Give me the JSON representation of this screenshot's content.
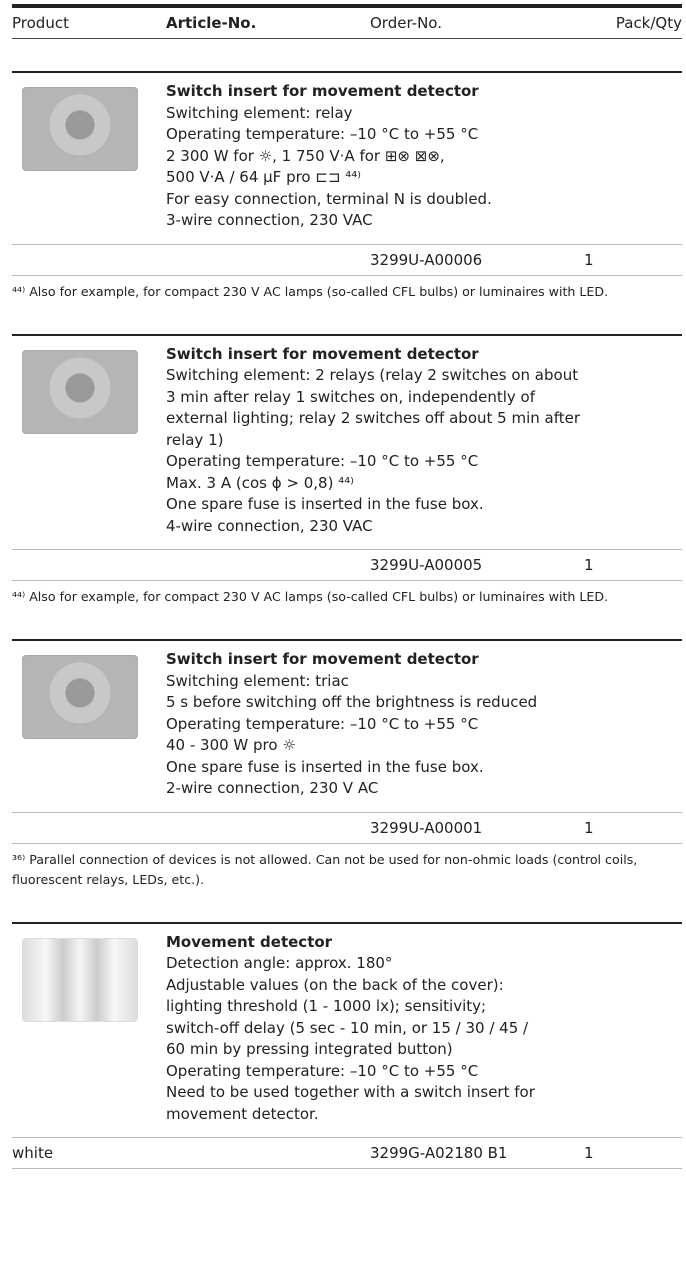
{
  "header": {
    "columns": [
      "Product",
      "Article-No.",
      "Order-No.",
      "Pack/Qty"
    ]
  },
  "products": [
    {
      "title": "Switch insert for movement detector",
      "lines": [
        "Switching element: relay",
        "Operating temperature: –10 °C to +55 °C",
        "2 300 W for ☼, 1 750 V·A for ⊞⊗ ⊠⊗,",
        "500 V·A / 64 µF pro ⊏⊐ ⁴⁴⁾",
        "For easy connection, terminal N is doubled.",
        "3-wire connection, 230 VAC"
      ],
      "order_no": "3299U-A00006",
      "qty": "1",
      "footnote": "⁴⁴⁾ Also for example, for compact 230 V AC lamps (so-called CFL bulbs) or luminaires with LED."
    },
    {
      "title": "Switch insert for movement detector",
      "lines": [
        "Switching element: 2 relays (relay 2 switches on about",
        "3 min after relay 1 switches on, independently of",
        "external lighting; relay 2 switches off about 5 min after",
        "relay 1)",
        "Operating temperature: –10 °C to +55 °C",
        "Max. 3 A (cos ϕ > 0,8) ⁴⁴⁾",
        "One spare fuse is inserted in the fuse box.",
        "4-wire connection, 230 VAC"
      ],
      "order_no": "3299U-A00005",
      "qty": "1",
      "footnote": "⁴⁴⁾ Also for example, for compact 230 V AC lamps (so-called CFL bulbs) or luminaires with LED."
    },
    {
      "title": "Switch insert for movement detector",
      "lines": [
        "Switching element: triac",
        "5 s before switching off the brightness is reduced",
        "Operating temperature: –10 °C to +55 °C",
        "40 - 300 W pro ☼",
        "One spare fuse is inserted in the fuse box.",
        "2-wire connection, 230 V AC"
      ],
      "order_no": "3299U-A00001",
      "qty": "1",
      "footnote": "³⁶⁾ Parallel connection of devices is not allowed. Can not be used for non-ohmic loads (control coils, fluorescent relays, LEDs, etc.)."
    },
    {
      "title": "Movement detector",
      "lines": [
        "Detection angle: approx. 180°",
        "Adjustable values (on the back of the cover):",
        "lighting threshold (1 - 1000 lx); sensitivity;",
        "switch-off delay (5 sec - 10 min, or 15 / 30 / 45 /",
        "60 min by pressing integrated button)",
        "Operating temperature: –10 °C to +55 °C",
        "Need to be used together with a switch insert for",
        "movement detector."
      ],
      "variant": "white",
      "order_no": "3299G-A02180 B1",
      "qty": "1"
    }
  ]
}
